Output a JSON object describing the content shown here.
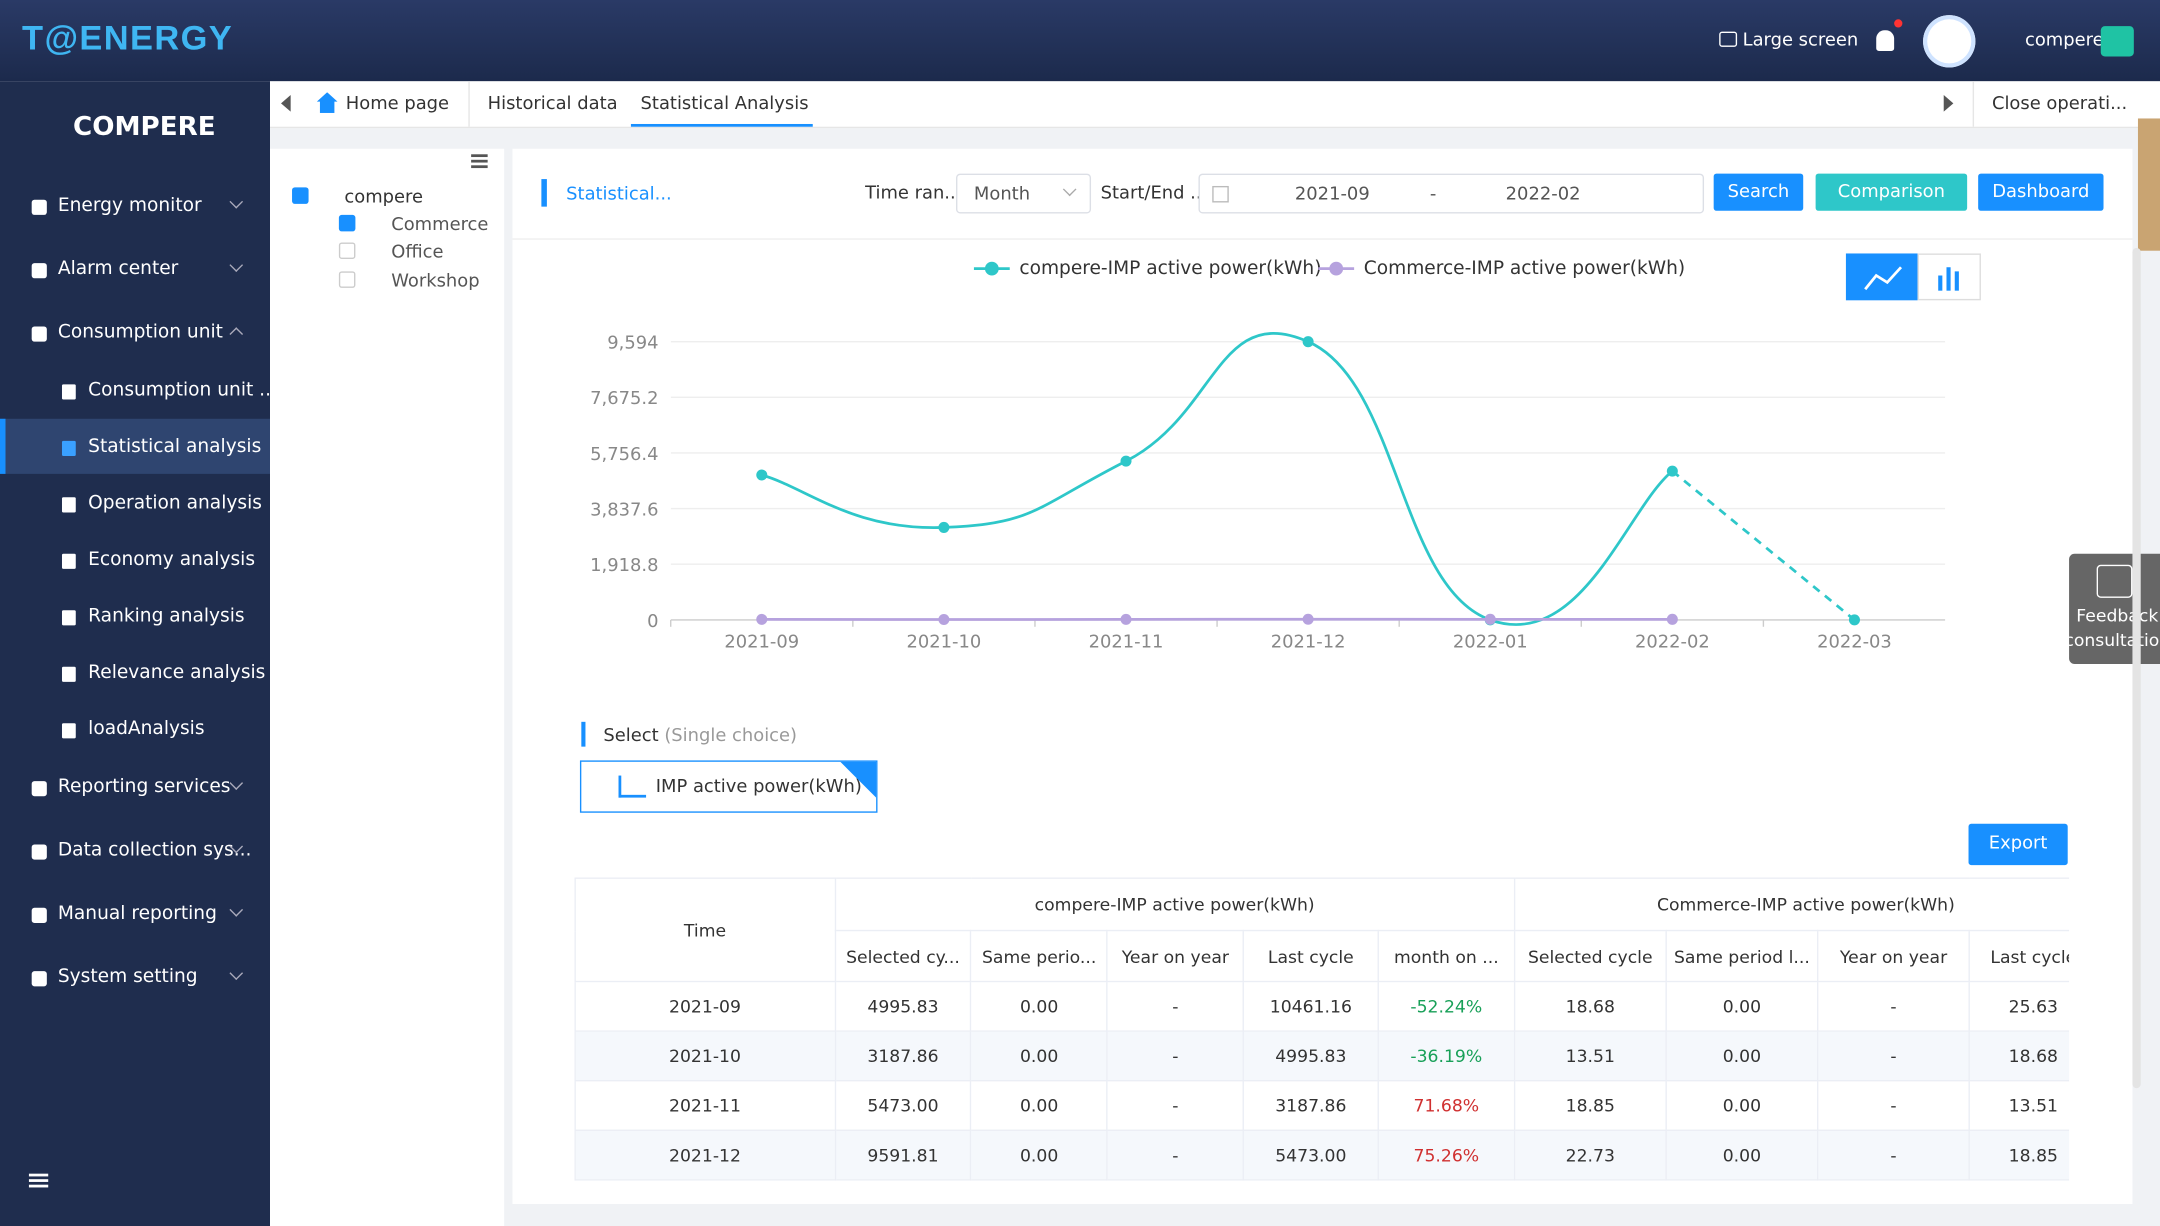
{
  "header": {
    "logo": "T@ENERGY",
    "large_screen": "Large screen",
    "user": "compere"
  },
  "sidebar": {
    "brand": "COMPERE",
    "menu": [
      {
        "label": "Energy monitor"
      },
      {
        "label": "Alarm center"
      },
      {
        "label": "Consumption unit",
        "children": [
          "Consumption unit ...",
          "Statistical analysis",
          "Operation analysis",
          "Economy analysis",
          "Ranking analysis",
          "Relevance analysis",
          "loadAnalysis"
        ]
      },
      {
        "label": "Reporting services"
      },
      {
        "label": "Data collection sys..."
      },
      {
        "label": "Manual reporting"
      },
      {
        "label": "System setting"
      }
    ]
  },
  "tabs": {
    "items": [
      "Home page",
      "Historical data",
      "Statistical Analysis"
    ],
    "close": "Close operati..."
  },
  "tree": {
    "root": "compere",
    "children": [
      "Commerce",
      "Office",
      "Workshop"
    ]
  },
  "toolbar": {
    "title": "Statistical...",
    "time_range_label": "Time ran...",
    "time_range": "Month",
    "start_end_label": "Start/End ...",
    "start": "2021-09",
    "separator": "-",
    "end": "2022-02",
    "search": "Search",
    "comparison": "Comparison",
    "dashboard": "Dashboard"
  },
  "chart_data": {
    "type": "line",
    "categories": [
      "2021-09",
      "2021-10",
      "2021-11",
      "2021-12",
      "2022-01",
      "2022-02",
      "2022-03"
    ],
    "series": [
      {
        "name": "compere-IMP active power(kWh)",
        "color": "#2ec7c9",
        "values": [
          4995.83,
          3187.86,
          5473.0,
          9591.81,
          0,
          5130,
          0
        ]
      },
      {
        "name": "Commerce-IMP active power(kWh)",
        "color": "#b6a2de",
        "values": [
          18.68,
          13.51,
          18.85,
          22.73,
          20,
          20,
          null
        ]
      }
    ],
    "ylim": [
      0,
      9594
    ],
    "yticks": [
      0,
      {
        "value": 1918.8,
        "label": "1,918.8"
      },
      {
        "value": 3837.6,
        "label": "3,837.6"
      },
      {
        "value": 5756.4,
        "label": "5,756.4"
      },
      {
        "value": 7675.2,
        "label": "7,675.2"
      },
      {
        "value": 9594,
        "label": "9,594"
      }
    ],
    "grid": true
  },
  "select": {
    "label": "Select",
    "hint": "(Single choice)",
    "option": "IMP active power(kWh)"
  },
  "export": "Export",
  "table": {
    "time": "Time",
    "groups": [
      "compere-IMP active power(kWh)",
      "Commerce-IMP active power(kWh)"
    ],
    "subheaders": [
      "Selected cy...",
      "Same perio...",
      "Year on year",
      "Last cycle",
      "month on ...",
      "Selected cycle",
      "Same period l...",
      "Year on year",
      "Last cycle"
    ],
    "rows": [
      [
        "2021-09",
        "4995.83",
        "0.00",
        "-",
        "10461.16",
        "-52.24%",
        "18.68",
        "0.00",
        "-",
        "25.63"
      ],
      [
        "2021-10",
        "3187.86",
        "0.00",
        "-",
        "4995.83",
        "-36.19%",
        "13.51",
        "0.00",
        "-",
        "18.68"
      ],
      [
        "2021-11",
        "5473.00",
        "0.00",
        "-",
        "3187.86",
        "71.68%",
        "18.85",
        "0.00",
        "-",
        "13.51"
      ],
      [
        "2021-12",
        "9591.81",
        "0.00",
        "-",
        "5473.00",
        "75.26%",
        "22.73",
        "0.00",
        "-",
        "18.85"
      ]
    ]
  },
  "feedback": "Feedback consultation"
}
